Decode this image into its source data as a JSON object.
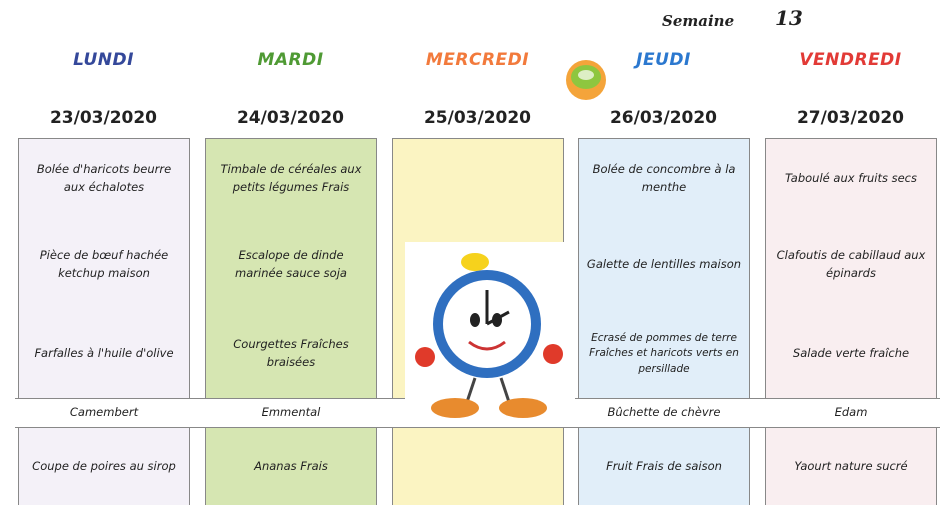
{
  "header": {
    "week_label": "Semaine",
    "week_number": "13"
  },
  "days": [
    {
      "name": "LUNDI",
      "date": "23/03/2020",
      "starter": "Bolée d'haricots beurre aux échalotes",
      "main": "Pièce de bœuf hachée ketchup maison",
      "side": "Farfalles à l'huile d'olive",
      "cheese": "Camembert",
      "dessert": "Coupe de poires au sirop"
    },
    {
      "name": "MARDI",
      "date": "24/03/2020",
      "starter": "Timbale de céréales aux petits légumes Frais",
      "main": "Escalope de dinde marinée sauce soja",
      "side": "Courgettes Fraîches braisées",
      "cheese": "Emmental",
      "dessert": "Ananas Frais"
    },
    {
      "name": "MERCREDI",
      "date": "25/03/2020"
    },
    {
      "name": "JEUDI",
      "date": "26/03/2020",
      "starter": "Bolée de concombre à la menthe",
      "main": "Galette de lentilles maison",
      "side": "Ecrasé de pommes de terre Fraîches et haricots verts en persillade",
      "cheese": "Bûchette de chèvre",
      "dessert": "Fruit Frais de saison"
    },
    {
      "name": "VENDREDI",
      "date": "27/03/2020",
      "starter": "Taboulé aux fruits secs",
      "main": "Clafoutis de cabillaud aux épinards",
      "side": "Salade verte fraîche",
      "cheese": "Edam",
      "dessert": "Yaourt nature sucré"
    }
  ]
}
